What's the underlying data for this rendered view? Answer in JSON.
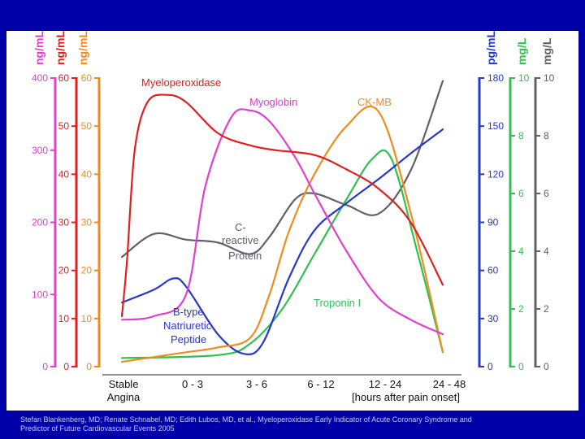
{
  "chart_data": {
    "type": "line",
    "title": "",
    "x": [
      "Stable Angina",
      "0 - 3",
      "3 - 6",
      "6 - 12",
      "12 - 24",
      "24 - 48"
    ],
    "xlabel": "[hours after pain onset]",
    "axes": [
      {
        "id": "pink",
        "side": "left",
        "unit": "ng/mL",
        "color": "#e040d0",
        "range": [
          0,
          400
        ],
        "ticks": [
          0,
          100,
          200,
          300,
          400
        ]
      },
      {
        "id": "red",
        "side": "left",
        "unit": "ng/mL",
        "color": "#e02020",
        "range": [
          0,
          60
        ],
        "ticks": [
          0,
          10,
          20,
          30,
          40,
          50,
          60
        ]
      },
      {
        "id": "orange",
        "side": "left",
        "unit": "ng/mL",
        "color": "#f08c1e",
        "range": [
          0,
          60
        ],
        "ticks": [
          0,
          10,
          20,
          30,
          40,
          50,
          60
        ]
      },
      {
        "id": "blue",
        "side": "right",
        "unit": "pg/mL",
        "color": "#2838c8",
        "range": [
          0,
          180
        ],
        "ticks": [
          0,
          30,
          60,
          90,
          120,
          150,
          180
        ]
      },
      {
        "id": "green",
        "side": "right",
        "unit": "mg/L",
        "color": "#30c050",
        "range": [
          0,
          10
        ],
        "ticks": [
          0,
          2,
          4,
          6,
          8,
          10
        ]
      },
      {
        "id": "gray",
        "side": "right",
        "unit": "mg/L",
        "color": "#606068",
        "range": [
          0,
          10
        ],
        "ticks": [
          0,
          2,
          4,
          6,
          8,
          10
        ]
      }
    ],
    "series": [
      {
        "name": "Myeloperoxidase",
        "axis": "red",
        "color": "#e02020",
        "x": [
          0,
          0.08,
          0.2,
          0.4,
          0.7,
          1.0,
          1.5,
          2.0,
          2.4,
          3.0,
          3.5,
          4.0,
          4.5,
          5.0
        ],
        "y": [
          10.5,
          22,
          45,
          55,
          56.5,
          55,
          48.5,
          46,
          45,
          44,
          41,
          37,
          30,
          17
        ]
      },
      {
        "name": "Myoglobin",
        "axis": "pink",
        "color": "#e040d0",
        "x": [
          0,
          0.5,
          1.0,
          1.3,
          1.7,
          2.0,
          2.3,
          2.7,
          3.0,
          3.5,
          4.0,
          4.5,
          5.0
        ],
        "y": [
          65,
          70,
          100,
          250,
          345,
          355,
          340,
          290,
          240,
          160,
          95,
          65,
          45
        ]
      },
      {
        "name": "CK-MB",
        "axis": "orange",
        "color": "#f08c1e",
        "x": [
          0,
          0.5,
          1.0,
          1.5,
          2.0,
          2.3,
          2.6,
          3.0,
          3.5,
          4.0,
          4.5,
          5.0
        ],
        "y": [
          1,
          2,
          3,
          4,
          6,
          15,
          28,
          40,
          50,
          53,
          32,
          3
        ]
      },
      {
        "name": "B-type Natriuretic Peptide",
        "axis": "blue",
        "color": "#2838c8",
        "x": [
          0,
          0.5,
          0.8,
          1.0,
          1.5,
          1.9,
          2.2,
          2.6,
          3.0,
          3.5,
          4.0,
          4.5,
          5.0
        ],
        "y": [
          40,
          48,
          55,
          50,
          20,
          8,
          15,
          55,
          85,
          102,
          117,
          133,
          148
        ]
      },
      {
        "name": "Troponin I",
        "axis": "green",
        "color": "#30c050",
        "x": [
          0,
          1.5,
          2.0,
          2.5,
          3.0,
          3.5,
          3.9,
          4.2,
          4.6,
          5.0
        ],
        "y": [
          0.3,
          0.4,
          0.8,
          2.0,
          3.9,
          5.8,
          7.2,
          7.2,
          4.0,
          0.5
        ]
      },
      {
        "name": "C-reactive Protein",
        "axis": "gray",
        "color": "#606068",
        "x": [
          0,
          0.5,
          1.0,
          1.5,
          2.0,
          2.3,
          2.7,
          3.0,
          3.5,
          4.0,
          4.5,
          5.0
        ],
        "y": [
          3.8,
          4.6,
          4.4,
          4.3,
          3.9,
          4.5,
          5.8,
          6.0,
          5.6,
          5.3,
          6.8,
          9.9
        ]
      }
    ],
    "annotations": [
      {
        "text": "Myeloperoxidase",
        "color": "#e02020"
      },
      {
        "text": "Myoglobin",
        "color": "#e040d0"
      },
      {
        "text": "CK-MB",
        "color": "#f08c1e"
      },
      {
        "text": "C-",
        "color": "#606068"
      },
      {
        "text": "reactive",
        "color": "#606068"
      },
      {
        "text": "Protein",
        "color": "#606068"
      },
      {
        "text": "B-type",
        "color": "#2838c8"
      },
      {
        "text": "Natriuretic",
        "color": "#2838c8"
      },
      {
        "text": "Peptide",
        "color": "#2838c8"
      },
      {
        "text": "Troponin I",
        "color": "#30c050"
      }
    ]
  },
  "credit": {
    "line1": "Stefan Blankenberg, MD; Renate Schnabel, MD; Edith Lubos, MD, et al., Myeloperoxidase Early Indicator of Acute Coronary Syndrome and",
    "line2": "Predictor of Future Cardiovascular Events 2005"
  }
}
